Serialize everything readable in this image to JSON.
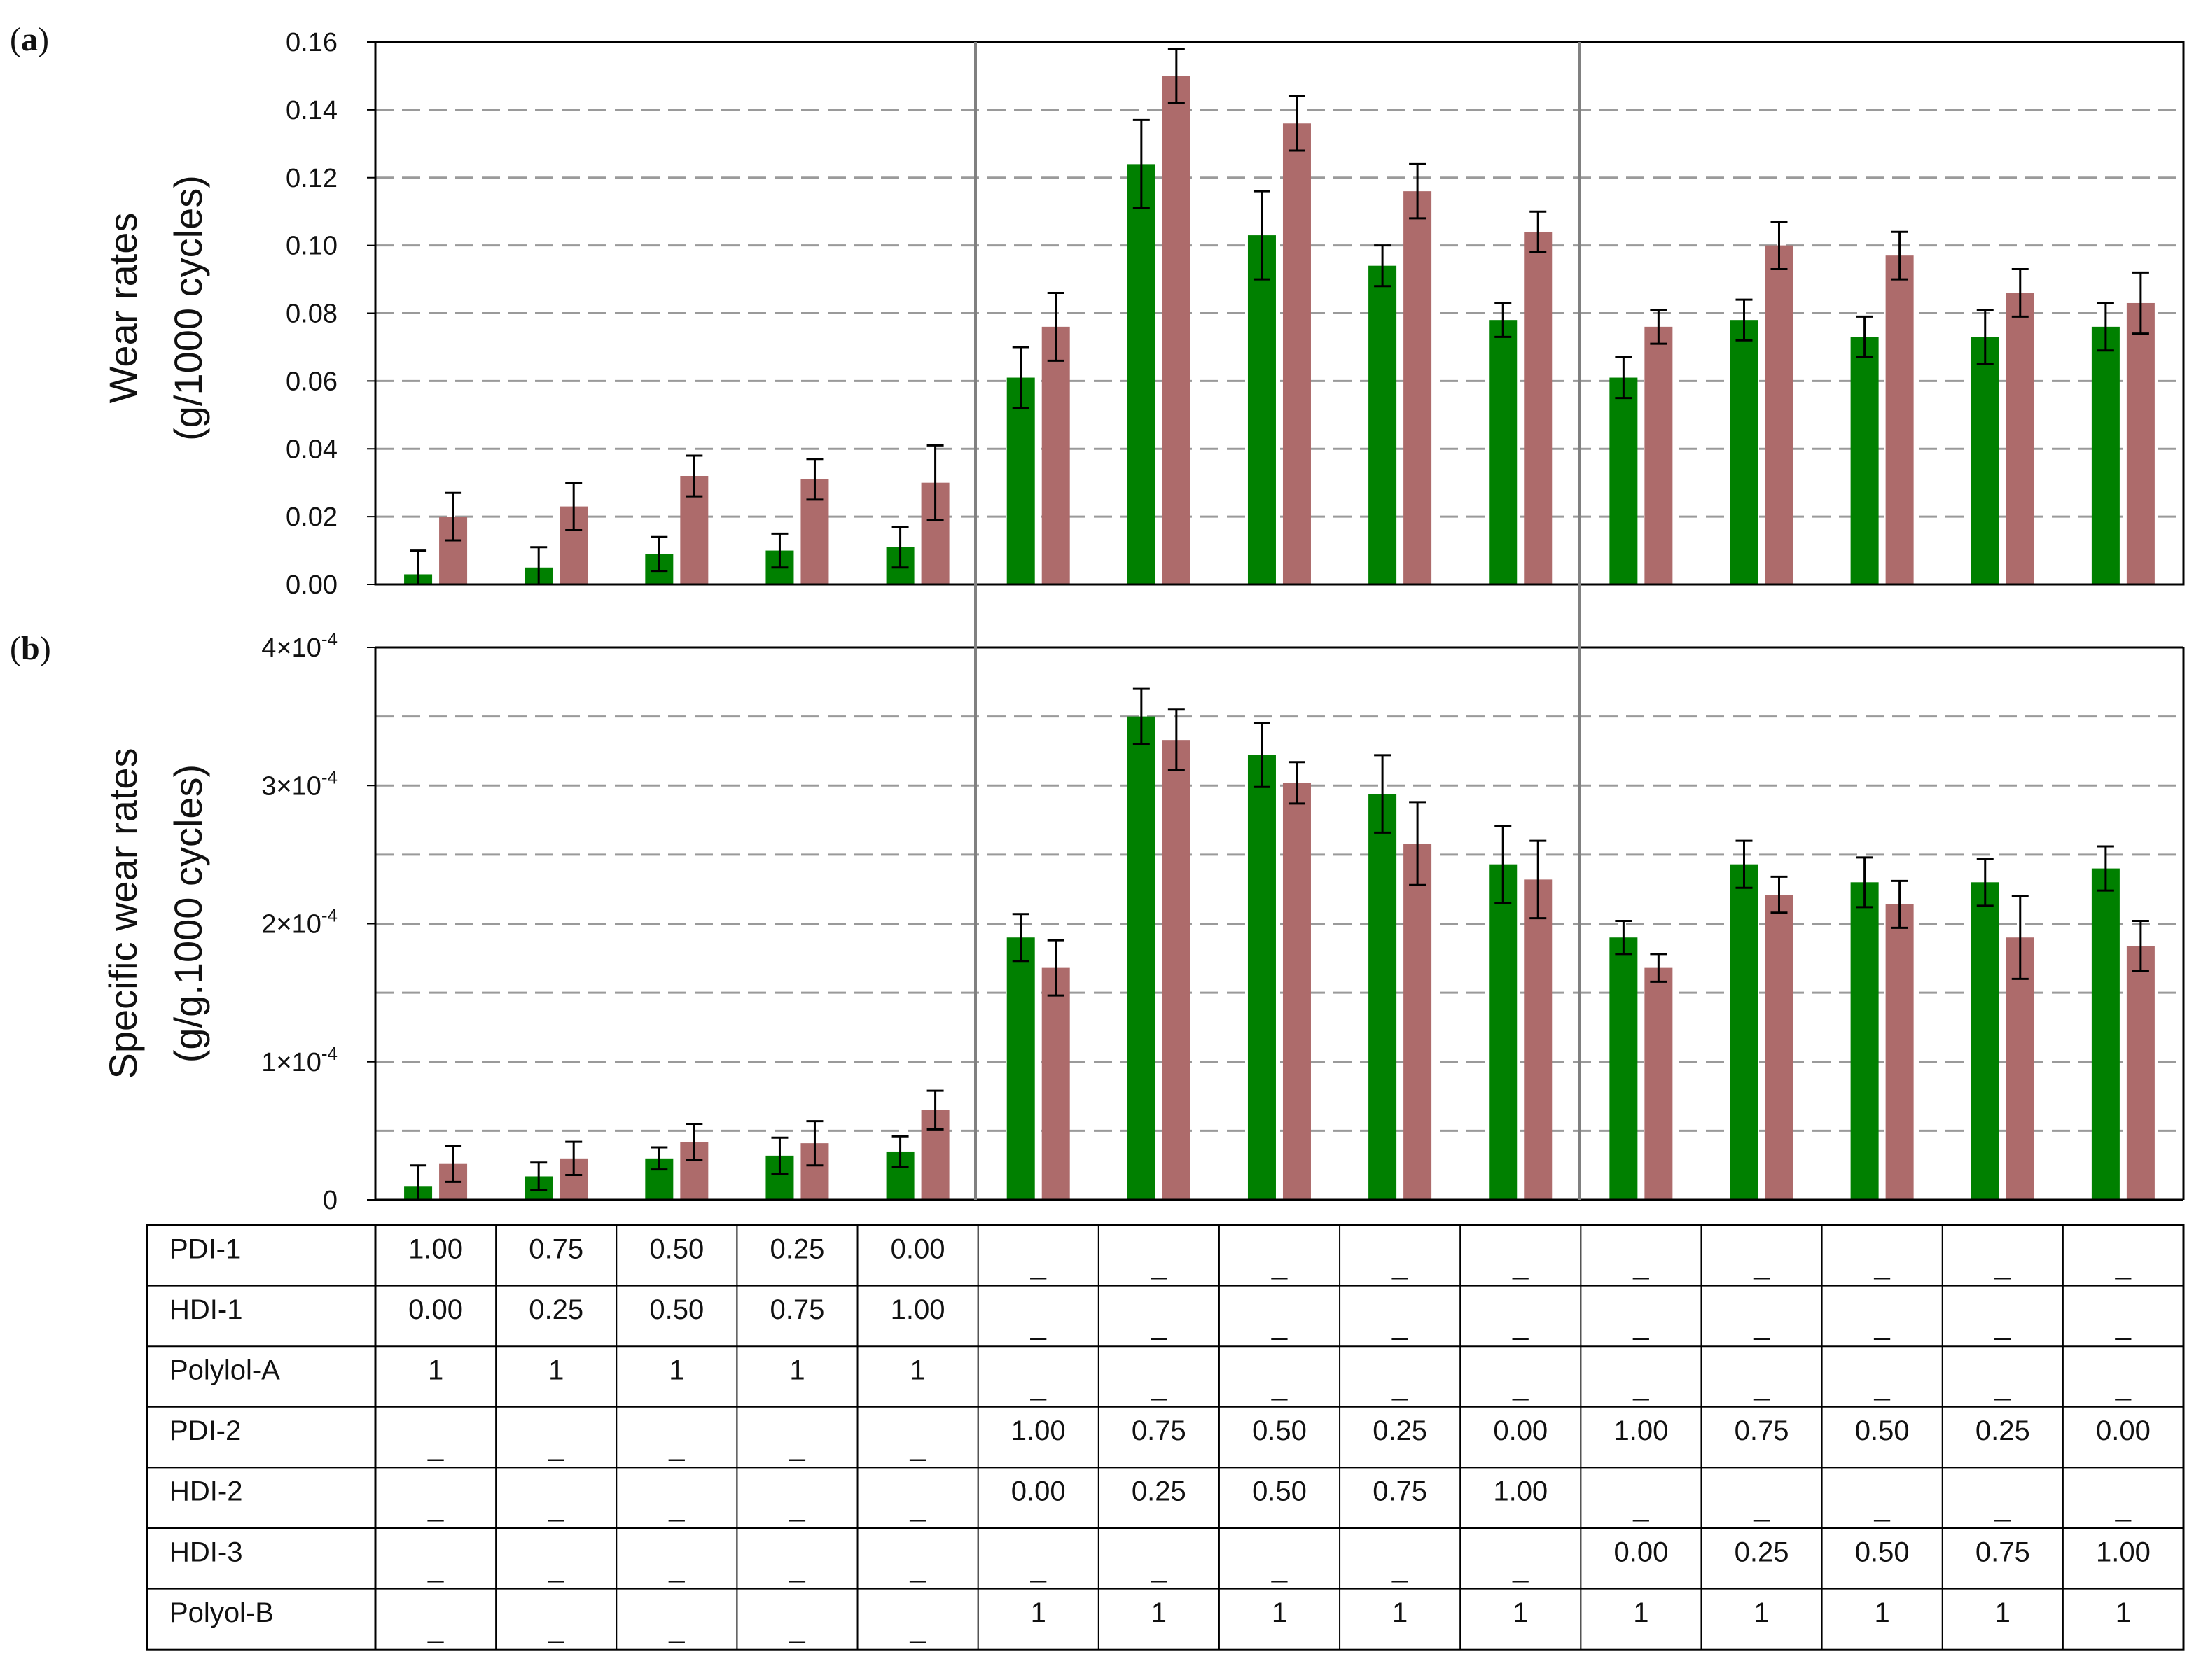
{
  "colors": {
    "series_a": "#008000",
    "series_b": "#AD6B6B",
    "grid": "#9A9A9A",
    "separator": "#808080",
    "axis": "#000000"
  },
  "chart_data": [
    {
      "panel": "(a)",
      "panel_letter": "a",
      "type": "bar",
      "ylabel_line1": "Wear rates",
      "ylabel_line2": "(g/1000 cycles)",
      "ylim": [
        0,
        0.16
      ],
      "yticks": [
        0,
        0.02,
        0.04,
        0.06,
        0.08,
        0.1,
        0.12,
        0.14,
        0.16
      ],
      "ytick_labels": [
        "0.00",
        "0.02",
        "0.04",
        "0.06",
        "0.08",
        "0.10",
        "0.12",
        "0.14",
        "0.16"
      ],
      "grid": "horizontal dashed",
      "groups": 15,
      "series": [
        {
          "color": "green",
          "values": [
            0.003,
            0.005,
            0.009,
            0.01,
            0.011,
            0.061,
            0.124,
            0.103,
            0.094,
            0.078,
            0.061,
            0.078,
            0.073,
            0.073,
            0.076
          ],
          "errors": [
            0.007,
            0.006,
            0.005,
            0.005,
            0.006,
            0.009,
            0.013,
            0.013,
            0.006,
            0.005,
            0.006,
            0.006,
            0.006,
            0.008,
            0.007
          ]
        },
        {
          "color": "red-brown",
          "values": [
            0.02,
            0.023,
            0.032,
            0.031,
            0.03,
            0.076,
            0.15,
            0.136,
            0.116,
            0.104,
            0.076,
            0.1,
            0.097,
            0.086,
            0.083
          ],
          "errors": [
            0.007,
            0.007,
            0.006,
            0.006,
            0.011,
            0.01,
            0.008,
            0.008,
            0.008,
            0.006,
            0.005,
            0.007,
            0.007,
            0.007,
            0.009
          ]
        }
      ]
    },
    {
      "panel": "(b)",
      "panel_letter": "b",
      "type": "bar",
      "ylabel_line1": "Specific wear rates",
      "ylabel_line2": "(g/g.1000 cycles)",
      "ylim": [
        0,
        0.0004
      ],
      "yticks": [
        0,
        0.0001,
        0.0002,
        0.0003,
        0.0004
      ],
      "ytick_labels": [
        "0",
        "1×10",
        "2×10",
        "3×10",
        "4×10"
      ],
      "ytick_exponent": "-4",
      "grid_values": [
        5e-05,
        0.0001,
        0.00015,
        0.0002,
        0.00025,
        0.0003,
        0.00035
      ],
      "grid": "horizontal dashed",
      "groups": 15,
      "series": [
        {
          "color": "green",
          "values": [
            1e-05,
            1.7e-05,
            3e-05,
            3.2e-05,
            3.5e-05,
            0.00019,
            0.00035,
            0.000322,
            0.000294,
            0.000243,
            0.00019,
            0.000243,
            0.00023,
            0.00023,
            0.00024
          ],
          "errors": [
            1.5e-05,
            1e-05,
            8e-06,
            1.3e-05,
            1.1e-05,
            1.7e-05,
            2e-05,
            2.3e-05,
            2.8e-05,
            2.8e-05,
            1.2e-05,
            1.7e-05,
            1.8e-05,
            1.7e-05,
            1.6e-05
          ]
        },
        {
          "color": "red-brown",
          "values": [
            2.6e-05,
            3e-05,
            4.2e-05,
            4.1e-05,
            6.5e-05,
            0.000168,
            0.000333,
            0.000302,
            0.000258,
            0.000232,
            0.000168,
            0.000221,
            0.000214,
            0.00019,
            0.000184
          ],
          "errors": [
            1.3e-05,
            1.2e-05,
            1.3e-05,
            1.6e-05,
            1.4e-05,
            2e-05,
            2.2e-05,
            1.5e-05,
            3e-05,
            2.8e-05,
            1e-05,
            1.3e-05,
            1.7e-05,
            3e-05,
            1.8e-05
          ]
        }
      ]
    }
  ],
  "table": {
    "rows": [
      {
        "label": "PDI-1",
        "cells": [
          "1.00",
          "0.75",
          "0.50",
          "0.25",
          "0.00",
          "_",
          "_",
          "_",
          "_",
          "_",
          "_",
          "_",
          "_",
          "_",
          "_"
        ]
      },
      {
        "label": "HDI-1",
        "cells": [
          "0.00",
          "0.25",
          "0.50",
          "0.75",
          "1.00",
          "_",
          "_",
          "_",
          "_",
          "_",
          "_",
          "_",
          "_",
          "_",
          "_"
        ]
      },
      {
        "label": "Polylol-A",
        "cells": [
          "1",
          "1",
          "1",
          "1",
          "1",
          "_",
          "_",
          "_",
          "_",
          "_",
          "_",
          "_",
          "_",
          "_",
          "_"
        ]
      },
      {
        "label": "PDI-2",
        "cells": [
          "_",
          "_",
          "_",
          "_",
          "_",
          "1.00",
          "0.75",
          "0.50",
          "0.25",
          "0.00",
          "1.00",
          "0.75",
          "0.50",
          "0.25",
          "0.00"
        ]
      },
      {
        "label": "HDI-2",
        "cells": [
          "_",
          "_",
          "_",
          "_",
          "_",
          "0.00",
          "0.25",
          "0.50",
          "0.75",
          "1.00",
          "_",
          "_",
          "_",
          "_",
          "_"
        ]
      },
      {
        "label": "HDI-3",
        "cells": [
          "_",
          "_",
          "_",
          "_",
          "_",
          "_",
          "_",
          "_",
          "_",
          "_",
          "0.00",
          "0.25",
          "0.50",
          "0.75",
          "1.00"
        ]
      },
      {
        "label": "Polyol-B",
        "cells": [
          "_",
          "_",
          "_",
          "_",
          "_",
          "1",
          "1",
          "1",
          "1",
          "1",
          "1",
          "1",
          "1",
          "1",
          "1"
        ]
      }
    ]
  }
}
